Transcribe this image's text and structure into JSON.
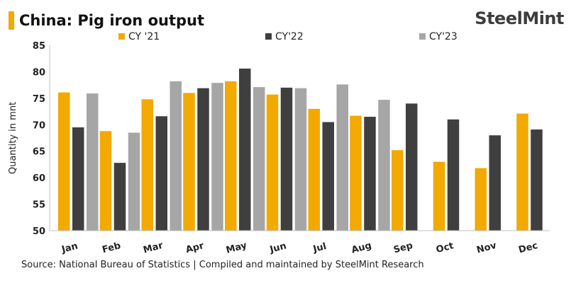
{
  "header": {
    "title": "China: Pig iron output",
    "brand": "SteelMint",
    "accent_color": "#F2A900"
  },
  "footer": {
    "source": "Source:  National Bureau of Statistics | Compiled and maintained by SteelMint Research"
  },
  "chart_data": {
    "type": "bar",
    "title": "China: Pig iron output",
    "xlabel": "",
    "ylabel": "Quantity in mnt",
    "ylim": [
      50,
      85
    ],
    "yticks": [
      50,
      55,
      60,
      65,
      70,
      75,
      80,
      85
    ],
    "grid": false,
    "legend_position": "top",
    "categories": [
      "Jan",
      "Feb",
      "Mar",
      "Apr",
      "May",
      "Jun",
      "Jul",
      "Aug",
      "Sep",
      "Oct",
      "Nov",
      "Dec"
    ],
    "series": [
      {
        "name": "CY '21",
        "color": "#F2A900",
        "values": [
          76.1,
          68.8,
          74.8,
          76.0,
          78.2,
          75.7,
          73.0,
          71.7,
          65.2,
          63.0,
          61.8,
          72.1
        ]
      },
      {
        "name": "CY'22",
        "color": "#3F3F3F",
        "values": [
          69.5,
          62.8,
          71.6,
          76.9,
          80.6,
          77.0,
          70.5,
          71.5,
          74.0,
          71.0,
          68.0,
          69.1
        ]
      },
      {
        "name": "CY'23",
        "color": "#A6A6A6",
        "values": [
          75.9,
          68.5,
          78.2,
          77.9,
          77.1,
          76.9,
          77.6,
          74.7,
          null,
          null,
          null,
          null
        ]
      }
    ]
  }
}
